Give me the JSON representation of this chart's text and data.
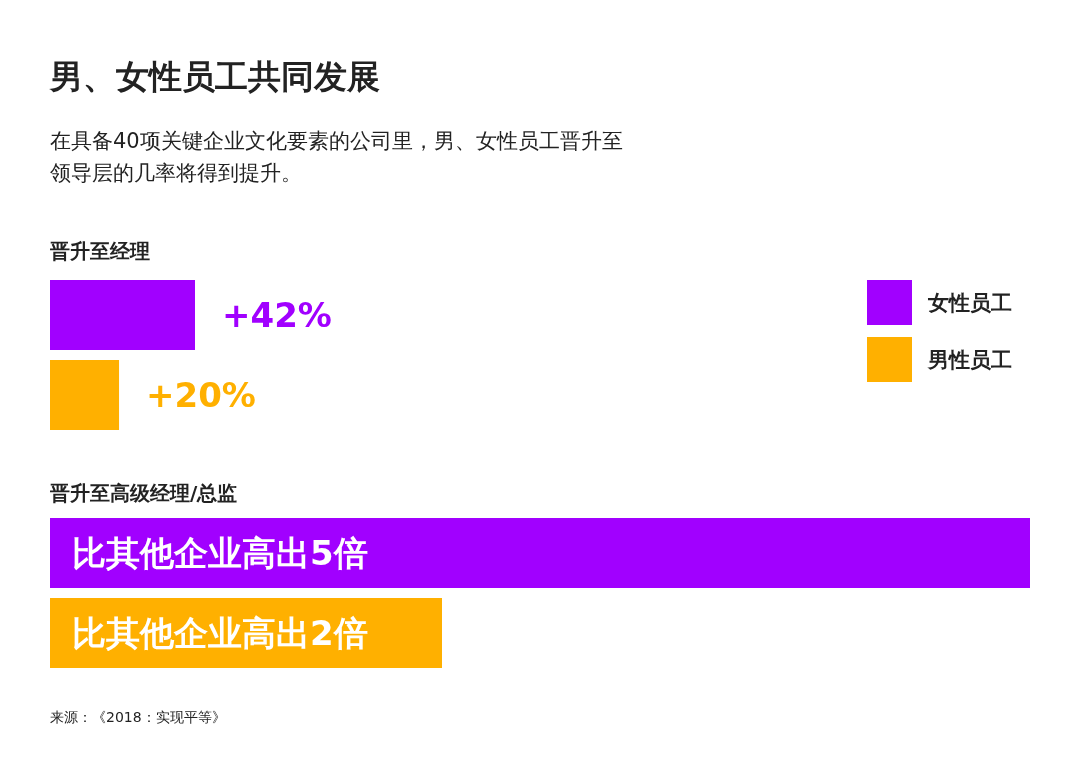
{
  "chart_data": [
    {
      "type": "other",
      "title": "男、女性员工共同发展",
      "subtitle": "在具备40项关键企业文化要素的公司里，男、女性员工晋升至领导层的几率将得到提升。"
    },
    {
      "type": "bar",
      "orientation": "horizontal",
      "title": "晋升至经理",
      "categories": [
        null
      ],
      "series": [
        {
          "name": "女性员工",
          "color": "#a100ff",
          "values": [
            42
          ],
          "value_labels": [
            "+42%"
          ]
        },
        {
          "name": "男性员工",
          "color": "#ffb000",
          "values": [
            20
          ],
          "value_labels": [
            "+20%"
          ]
        }
      ],
      "legend": "top right"
    },
    {
      "type": "bar",
      "orientation": "horizontal",
      "title": "晋升至高级经理/总监",
      "categories": [
        null
      ],
      "series": [
        {
          "color": "#a100ff",
          "values": [
            5
          ],
          "value_labels": [
            "比其他企业高出5倍"
          ]
        },
        {
          "color": "#ffb000",
          "values": [
            2
          ],
          "value_labels": [
            "比其他企业高出2倍"
          ]
        }
      ],
      "annotations": [
        "来源：《2018：实现平等》"
      ]
    }
  ]
}
